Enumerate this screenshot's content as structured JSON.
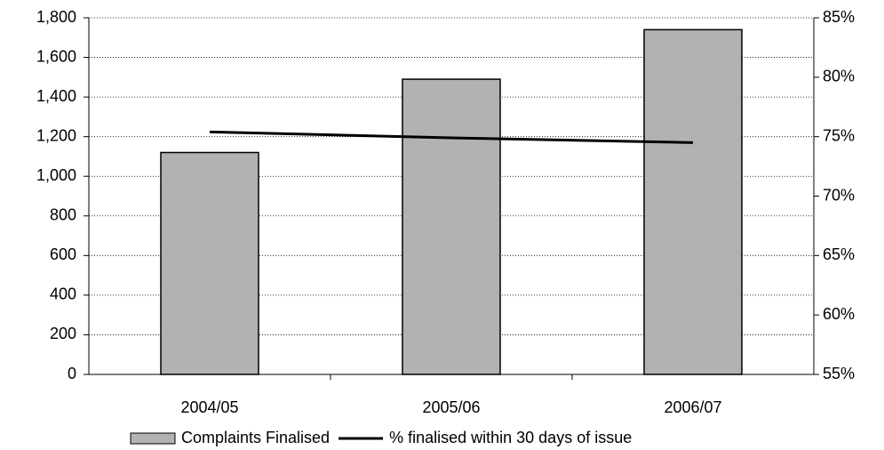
{
  "chart_data": {
    "type": "bar",
    "categories": [
      "2004/05",
      "2005/06",
      "2006/07"
    ],
    "series": [
      {
        "name": "Complaints Finalised",
        "type": "bar",
        "color": "#b2b2b2",
        "values": [
          1120,
          1490,
          1740
        ]
      },
      {
        "name": "% finalised within 30 days of issue",
        "type": "line",
        "axis": "y2",
        "color": "#000000",
        "values": [
          75.4,
          74.9,
          74.5
        ]
      }
    ],
    "ylim": [
      0,
      1800
    ],
    "yticks": [
      0,
      200,
      400,
      600,
      800,
      {
        "value": 1000,
        "label": "1,000"
      },
      {
        "value": 1200,
        "label": "1,200"
      },
      {
        "value": 1400,
        "label": "1,400"
      },
      {
        "value": 1600,
        "label": "1,600"
      },
      {
        "value": 1800,
        "label": "1,800"
      }
    ],
    "y2lim": [
      55,
      85
    ],
    "y2ticks": [
      {
        "value": 55,
        "label": "55%"
      },
      {
        "value": 60,
        "label": "60%"
      },
      {
        "value": 65,
        "label": "65%"
      },
      {
        "value": 70,
        "label": "70%"
      },
      {
        "value": 75,
        "label": "75%"
      },
      {
        "value": 80,
        "label": "80%"
      },
      {
        "value": 85,
        "label": "85%"
      }
    ],
    "grid": true,
    "legend": "bottom"
  }
}
